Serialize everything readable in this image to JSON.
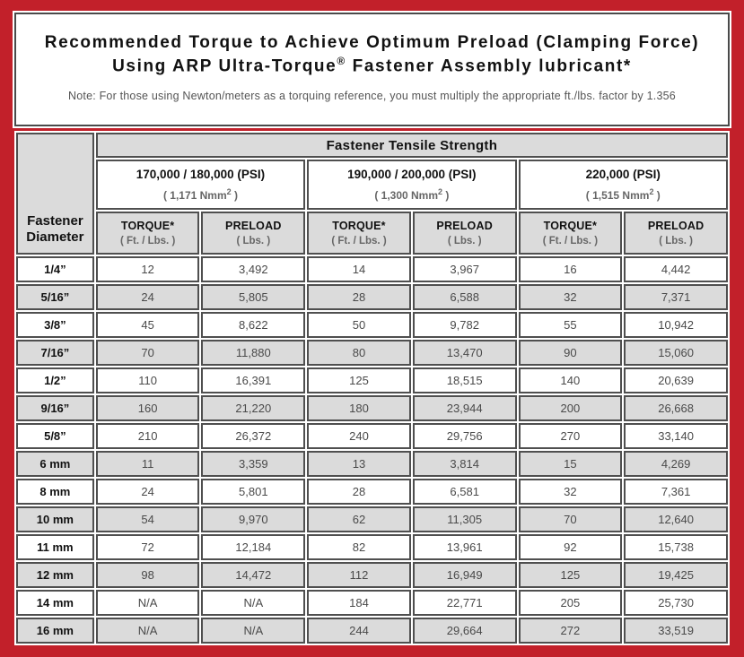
{
  "title": {
    "line1": "Recommended Torque to Achieve Optimum Preload (Clamping Force)",
    "line2_prefix": "Using ARP Ultra-Torque",
    "line2_reg": "®",
    "line2_suffix": " Fastener Assembly lubricant*",
    "note": "Note: For those using Newton/meters as a torquing reference, you must multiply the appropriate ft./lbs. factor by 1.356"
  },
  "table": {
    "corner_header": "Fastener Diameter",
    "group_header": "Fastener Tensile Strength",
    "strength_columns": [
      {
        "psi": "170,000 / 180,000 (PSI)",
        "nmm_prefix": "( 1,171 Nmm",
        "nmm_sup": "2",
        "nmm_suffix": " )"
      },
      {
        "psi": "190,000 / 200,000 (PSI)",
        "nmm_prefix": "( 1,300 Nmm",
        "nmm_sup": "2",
        "nmm_suffix": " )"
      },
      {
        "psi": "220,000 (PSI)",
        "nmm_prefix": "( 1,515 Nmm",
        "nmm_sup": "2",
        "nmm_suffix": " )"
      }
    ],
    "sub_headers": {
      "torque_label": "TORQUE*",
      "torque_unit": "( Ft. / Lbs. )",
      "preload_label": "PRELOAD",
      "preload_unit": "( Lbs. )"
    },
    "rows": [
      {
        "diameter": "1/4”",
        "values": [
          "12",
          "3,492",
          "14",
          "3,967",
          "16",
          "4,442"
        ]
      },
      {
        "diameter": "5/16”",
        "values": [
          "24",
          "5,805",
          "28",
          "6,588",
          "32",
          "7,371"
        ]
      },
      {
        "diameter": "3/8”",
        "values": [
          "45",
          "8,622",
          "50",
          "9,782",
          "55",
          "10,942"
        ]
      },
      {
        "diameter": "7/16”",
        "values": [
          "70",
          "11,880",
          "80",
          "13,470",
          "90",
          "15,060"
        ]
      },
      {
        "diameter": "1/2”",
        "values": [
          "110",
          "16,391",
          "125",
          "18,515",
          "140",
          "20,639"
        ]
      },
      {
        "diameter": "9/16”",
        "values": [
          "160",
          "21,220",
          "180",
          "23,944",
          "200",
          "26,668"
        ]
      },
      {
        "diameter": "5/8”",
        "values": [
          "210",
          "26,372",
          "240",
          "29,756",
          "270",
          "33,140"
        ]
      },
      {
        "diameter": "6 mm",
        "values": [
          "11",
          "3,359",
          "13",
          "3,814",
          "15",
          "4,269"
        ]
      },
      {
        "diameter": "8 mm",
        "values": [
          "24",
          "5,801",
          "28",
          "6,581",
          "32",
          "7,361"
        ]
      },
      {
        "diameter": "10 mm",
        "values": [
          "54",
          "9,970",
          "62",
          "11,305",
          "70",
          "12,640"
        ]
      },
      {
        "diameter": "11 mm",
        "values": [
          "72",
          "12,184",
          "82",
          "13,961",
          "92",
          "15,738"
        ]
      },
      {
        "diameter": "12 mm",
        "values": [
          "98",
          "14,472",
          "112",
          "16,949",
          "125",
          "19,425"
        ]
      },
      {
        "diameter": "14 mm",
        "values": [
          "N/A",
          "N/A",
          "184",
          "22,771",
          "205",
          "25,730"
        ]
      },
      {
        "diameter": "16 mm",
        "values": [
          "N/A",
          "N/A",
          "244",
          "29,664",
          "272",
          "33,519"
        ]
      }
    ]
  },
  "colors": {
    "frame_red": "#c2202a",
    "cell_border": "#4f4f4f",
    "stripe_gray": "#dbdbdb",
    "note_text": "#555555",
    "value_text": "#4a4a4a"
  }
}
